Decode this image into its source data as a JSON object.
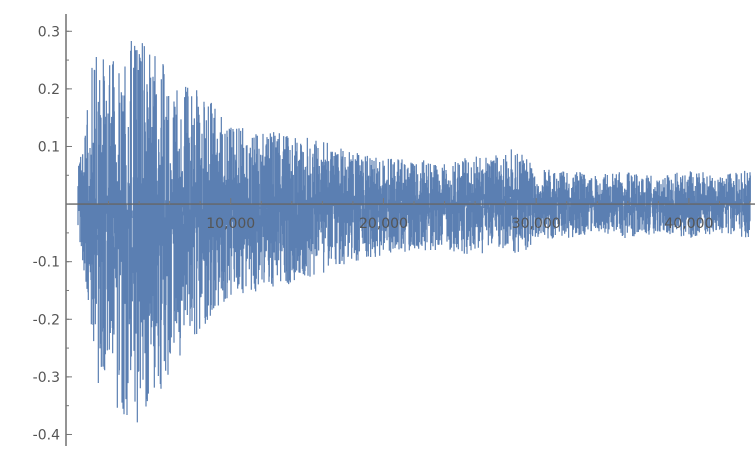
{
  "chart_data": {
    "type": "line",
    "title": "",
    "xlabel": "",
    "ylabel": "",
    "xlim": [
      0,
      44000
    ],
    "ylim": [
      -0.42,
      0.33
    ],
    "grid": false,
    "legend": "none",
    "colors": {
      "series": "#5b7fb2",
      "axis": "#666666",
      "tick_label": "#555555"
    },
    "x_ticks": [
      {
        "value": 10000,
        "label": "10,000"
      },
      {
        "value": 20000,
        "label": "20,000"
      },
      {
        "value": 30000,
        "label": "30,000"
      },
      {
        "value": 40000,
        "label": "40,000"
      }
    ],
    "y_ticks": [
      {
        "value": 0.3,
        "label": "0.3"
      },
      {
        "value": 0.2,
        "label": "0.2"
      },
      {
        "value": 0.1,
        "label": "0.1"
      },
      {
        "value": -0.1,
        "label": "-0.1"
      },
      {
        "value": -0.2,
        "label": "-0.2"
      },
      {
        "value": -0.3,
        "label": "-0.3"
      },
      {
        "value": -0.4,
        "label": "-0.4"
      }
    ],
    "series": [
      {
        "points_count": 44000,
        "envelope": {
          "x": [
            0,
            400,
            1000,
            2000,
            3000,
            4000,
            5000,
            6000,
            7000,
            8000,
            9000,
            10000,
            12000,
            14000,
            16000,
            18000,
            20000,
            22000,
            24000,
            26000,
            27000,
            28000,
            29000,
            30000,
            32000,
            34000,
            36000,
            38000,
            40000,
            42000,
            44000
          ],
          "upper": [
            0.08,
            0.12,
            0.26,
            0.25,
            0.28,
            0.29,
            0.26,
            0.24,
            0.22,
            0.19,
            0.17,
            0.14,
            0.13,
            0.12,
            0.11,
            0.09,
            0.08,
            0.08,
            0.07,
            0.09,
            0.08,
            0.1,
            0.09,
            0.06,
            0.06,
            0.05,
            0.06,
            0.05,
            0.06,
            0.05,
            0.06
          ],
          "lower": [
            -0.06,
            -0.15,
            -0.3,
            -0.34,
            -0.38,
            -0.39,
            -0.34,
            -0.3,
            -0.25,
            -0.22,
            -0.19,
            -0.16,
            -0.15,
            -0.14,
            -0.12,
            -0.1,
            -0.09,
            -0.08,
            -0.08,
            -0.09,
            -0.08,
            -0.08,
            -0.09,
            -0.06,
            -0.06,
            -0.05,
            -0.06,
            -0.05,
            -0.06,
            -0.05,
            -0.06
          ]
        }
      }
    ]
  }
}
